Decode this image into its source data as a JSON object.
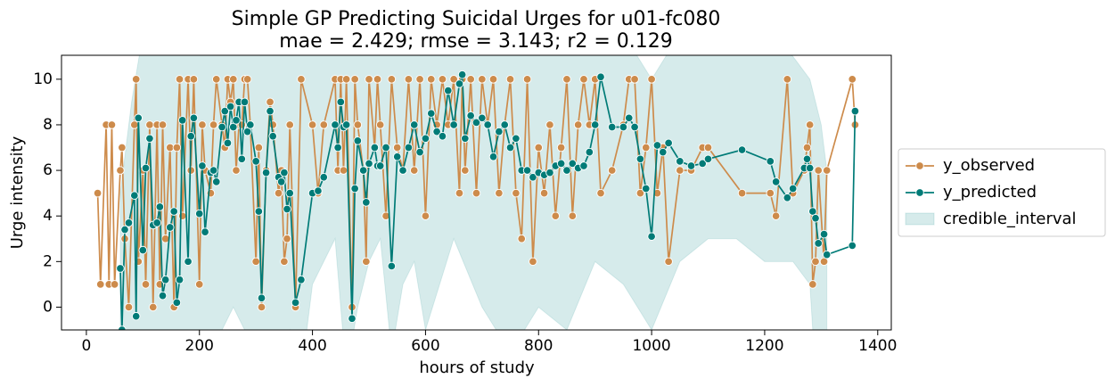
{
  "chart_data": {
    "type": "line",
    "title": "Simple GP Predicting Suicidal Urges for u01-fc080",
    "subtitle": "mae = 2.429; rmse = 3.143; r2 = 0.129",
    "x_label": "hours of study",
    "y_label": "Urge intensity",
    "xlim": [
      -44,
      1424
    ],
    "ylim": [
      -1,
      11.05
    ],
    "xticks": [
      0,
      200,
      400,
      600,
      800,
      1000,
      1200,
      1400
    ],
    "yticks": [
      0,
      2,
      4,
      6,
      8,
      10
    ],
    "legend": "right-outside",
    "x": [
      20,
      25,
      35,
      40,
      45,
      50,
      60,
      63,
      68,
      75,
      85,
      88,
      92,
      100,
      105,
      112,
      118,
      125,
      130,
      135,
      140,
      148,
      155,
      160,
      165,
      170,
      180,
      185,
      190,
      200,
      205,
      210,
      220,
      225,
      230,
      240,
      245,
      250,
      255,
      260,
      265,
      270,
      275,
      280,
      285,
      290,
      300,
      305,
      310,
      318,
      325,
      330,
      340,
      345,
      350,
      355,
      360,
      370,
      380,
      400,
      410,
      420,
      440,
      445,
      450,
      455,
      460,
      470,
      475,
      480,
      490,
      495,
      500,
      510,
      515,
      520,
      530,
      540,
      550,
      560,
      570,
      580,
      590,
      600,
      610,
      620,
      630,
      640,
      650,
      660,
      665,
      670,
      680,
      690,
      700,
      710,
      720,
      730,
      740,
      750,
      760,
      770,
      780,
      790,
      800,
      810,
      820,
      830,
      840,
      850,
      860,
      870,
      880,
      890,
      900,
      910,
      930,
      950,
      960,
      970,
      980,
      990,
      1000,
      1010,
      1020,
      1030,
      1050,
      1070,
      1090,
      1100,
      1160,
      1210,
      1220,
      1240,
      1250,
      1270,
      1275,
      1280,
      1285,
      1290,
      1295,
      1305,
      1310,
      1355,
      1360
    ],
    "series": [
      {
        "name": "y_observed",
        "color": "#cd8b4b",
        "values": [
          5,
          1,
          8,
          1,
          8,
          1,
          6,
          7,
          3,
          0,
          8,
          10,
          2,
          6,
          1,
          8,
          0,
          8,
          1,
          8,
          3,
          7,
          0,
          7,
          10,
          4,
          10,
          6,
          10,
          1,
          8,
          6,
          5,
          8,
          10,
          8,
          7,
          10,
          9,
          10,
          6,
          8,
          8,
          10,
          10,
          8,
          2,
          7,
          0,
          6,
          9,
          8,
          5,
          6,
          2,
          3,
          8,
          0,
          10,
          8,
          5,
          8,
          10,
          6,
          10,
          6,
          10,
          0,
          10,
          8,
          6,
          2,
          10,
          7,
          10,
          8,
          4,
          10,
          7,
          6,
          10,
          6,
          10,
          4,
          10,
          8,
          10,
          8,
          10,
          5,
          10,
          6,
          10,
          5,
          10,
          8,
          10,
          5,
          8,
          10,
          5,
          3,
          10,
          2,
          7,
          5,
          8,
          4,
          7,
          10,
          4,
          8,
          10,
          8,
          10,
          5,
          6,
          8,
          10,
          10,
          5,
          7,
          10,
          5,
          7,
          2,
          6,
          6,
          7,
          7,
          5,
          5,
          4,
          10,
          5,
          6,
          7,
          8,
          1,
          2,
          6,
          2,
          6,
          10,
          8
        ]
      },
      {
        "name": "y_predicted",
        "color": "#007b77",
        "values": [
          null,
          null,
          null,
          null,
          null,
          null,
          1.7,
          -1,
          3.4,
          3.7,
          4.9,
          -0.4,
          8.3,
          2.5,
          6.1,
          7.4,
          3.6,
          3.7,
          4.4,
          0.5,
          1.2,
          3.5,
          4.2,
          0.2,
          1.2,
          8.2,
          2.0,
          7.5,
          8.3,
          4.1,
          6.2,
          3.3,
          5.9,
          6.0,
          5.5,
          7.9,
          8.6,
          7.2,
          8.8,
          7.9,
          8.2,
          9.0,
          6.5,
          9.0,
          7.7,
          8.0,
          6.4,
          4.2,
          0.4,
          5.9,
          8.6,
          7.5,
          5.7,
          5.5,
          5.9,
          4.3,
          5.0,
          0.2,
          1.2,
          5.0,
          5.1,
          5.7,
          8.0,
          7.0,
          9.0,
          7.9,
          8.0,
          -0.5,
          5.2,
          7.3,
          6.0,
          4.6,
          6.3,
          7.0,
          6.2,
          6.2,
          7.0,
          1.8,
          6.6,
          6.0,
          7.0,
          8.0,
          6.8,
          7.4,
          8.5,
          7.7,
          7.5,
          9.5,
          8.0,
          9.8,
          10.2,
          7.4,
          8.4,
          8.1,
          8.3,
          8.0,
          6.6,
          7.7,
          8.0,
          7.0,
          7.4,
          6.0,
          6.0,
          5.7,
          5.9,
          5.8,
          5.9,
          6.2,
          6.3,
          6.0,
          6.3,
          6.1,
          6.2,
          6.8,
          8.0,
          10.1,
          7.9,
          7.9,
          8.3,
          7.9,
          6.5,
          5.2,
          3.1,
          7.1,
          6.8,
          7.2,
          6.4,
          6.2,
          6.3,
          6.5,
          6.9,
          6.4,
          5.5,
          4.8,
          5.2,
          6.1,
          6.5,
          6.1,
          4.2,
          3.9,
          2.8,
          3.2,
          2.3,
          2.7,
          8.6
        ]
      }
    ],
    "interval": {
      "name": "credible_interval",
      "color": "#008080",
      "x": [
        60,
        80,
        100,
        120,
        140,
        160,
        180,
        200,
        220,
        240,
        260,
        280,
        300,
        320,
        340,
        360,
        380,
        400,
        420,
        440,
        460,
        480,
        500,
        520,
        540,
        560,
        580,
        600,
        650,
        700,
        750,
        800,
        850,
        900,
        950,
        1000,
        1050,
        1100,
        1150,
        1200,
        1250,
        1280,
        1290,
        1300,
        1310
      ],
      "lower": [
        -3,
        -4,
        -3,
        -2,
        -3,
        -2,
        -3,
        -2,
        -2,
        -1,
        0,
        -1,
        -2,
        -3,
        -2,
        -1,
        -3,
        1,
        2,
        3,
        -3,
        0,
        2,
        3,
        -2,
        1,
        2,
        -1,
        3,
        0,
        -2,
        0,
        -1,
        2,
        1,
        -1,
        2,
        3,
        3,
        2,
        2,
        1,
        -3,
        -3,
        -3
      ],
      "upper": [
        5,
        9,
        12,
        13,
        14,
        13,
        14,
        14,
        13,
        13,
        14,
        13,
        12,
        14,
        13,
        12,
        13,
        12,
        12,
        14,
        13,
        12,
        13,
        14,
        13,
        12,
        13,
        14,
        13,
        12,
        12,
        12,
        13,
        13,
        12,
        10,
        12,
        13,
        13,
        12,
        11,
        10,
        9,
        8,
        6
      ]
    }
  }
}
